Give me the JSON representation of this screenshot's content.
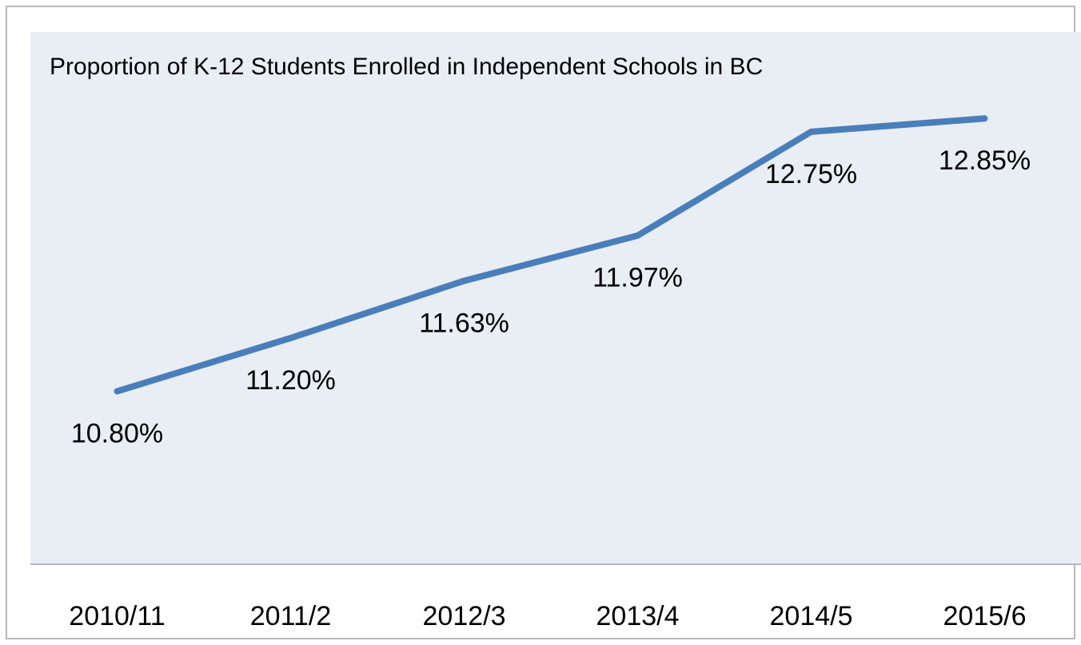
{
  "chart_data": {
    "type": "line",
    "title": "Proportion of K-12 Students Enrolled in Independent Schools in BC",
    "categories": [
      "2010/11",
      "2011/2",
      "2012/3",
      "2013/4",
      "2014/5",
      "2015/6"
    ],
    "series": [
      {
        "name": "Proportion",
        "color": "#4a7ebb",
        "values": [
          10.8,
          11.2,
          11.63,
          11.97,
          12.75,
          12.85
        ],
        "value_labels": [
          "10.80%",
          "11.20%",
          "11.63%",
          "11.97%",
          "12.75%",
          "12.85%"
        ]
      }
    ],
    "ylim": [
      9.5,
      13.5
    ],
    "grid": false,
    "legend": false
  }
}
